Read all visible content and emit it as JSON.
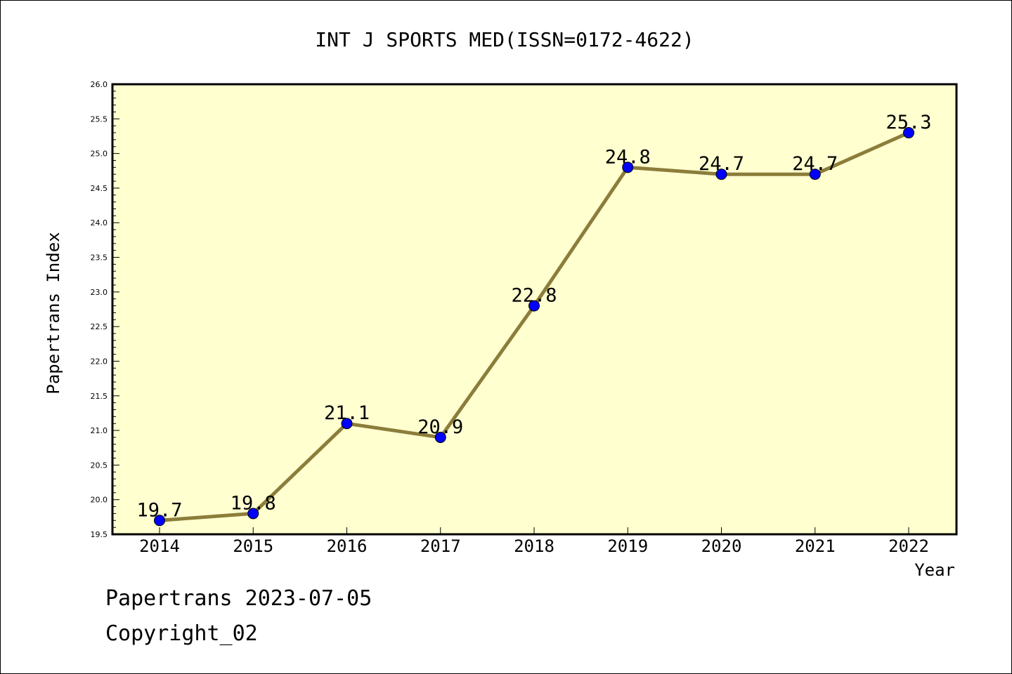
{
  "chart_data": {
    "type": "line",
    "title": "INT J SPORTS MED(ISSN=0172-4622)",
    "xlabel": "Year",
    "ylabel": "Papertrans Index",
    "x": [
      "2014",
      "2015",
      "2016",
      "2017",
      "2018",
      "2019",
      "2020",
      "2021",
      "2022"
    ],
    "series": [
      {
        "values": [
          19.7,
          19.8,
          21.1,
          20.9,
          22.8,
          24.8,
          24.7,
          24.7,
          25.3
        ],
        "labels": [
          "19.7",
          "19.8",
          "21.1",
          "20.9",
          "22.8",
          "24.8",
          "24.7",
          "24.7",
          "25.3"
        ]
      }
    ],
    "ylim": [
      19.5,
      26.0
    ],
    "yticks": [
      "19.5",
      "20.0",
      "20.5",
      "21.0",
      "21.5",
      "22.0",
      "22.5",
      "23.0",
      "23.5",
      "24.0",
      "24.5",
      "25.0",
      "25.5",
      "26.0"
    ],
    "grid": false,
    "colors": {
      "plot_background": "#ffffd0",
      "line": "#8b7d3a",
      "marker": "#0000ff"
    }
  },
  "footer": {
    "date_line": "Papertrans 2023-07-05",
    "copyright": "Copyright_02"
  }
}
